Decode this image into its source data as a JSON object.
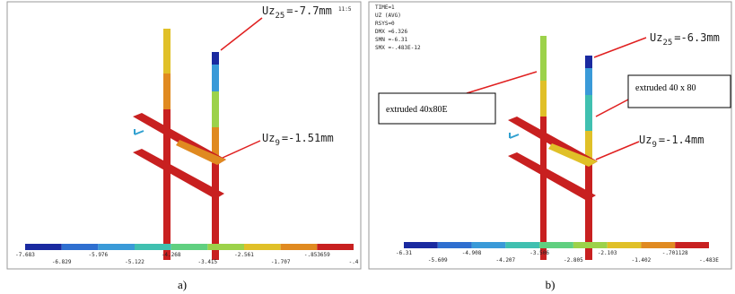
{
  "panels": [
    {
      "clock": "11:5",
      "callouts": [
        {
          "name": "Uz",
          "node": "25",
          "value": "=-7.7mm"
        },
        {
          "name": "Uz",
          "node": "9",
          "value": "=-1.51mm"
        }
      ],
      "colorbar": [
        "-7.683",
        "-6.829",
        "-5.976",
        "-5.122",
        "-4.268",
        "-3.415",
        "-2.561",
        "-1.707",
        "-.853659",
        "-.4"
      ],
      "caption": "a)"
    },
    {
      "header": [
        "TIME=1",
        "UZ        (AVG)",
        "RSYS=0",
        "DMX =6.326",
        "SMN =-6.31",
        "SMX =-.483E-12"
      ],
      "boxes": [
        "extruded 40x80E",
        "extruded 40 x 80"
      ],
      "callouts": [
        {
          "name": "Uz",
          "node": "25",
          "value": "=-6.3mm"
        },
        {
          "name": "Uz",
          "node": "9",
          "value": "=-1.4mm"
        }
      ],
      "colorbar": [
        "-6.31",
        "-5.609",
        "-4.908",
        "-4.207",
        "-3.506",
        "-2.805",
        "-2.103",
        "-1.402",
        "-.701128",
        "-.483E"
      ],
      "caption": "b)"
    }
  ]
}
